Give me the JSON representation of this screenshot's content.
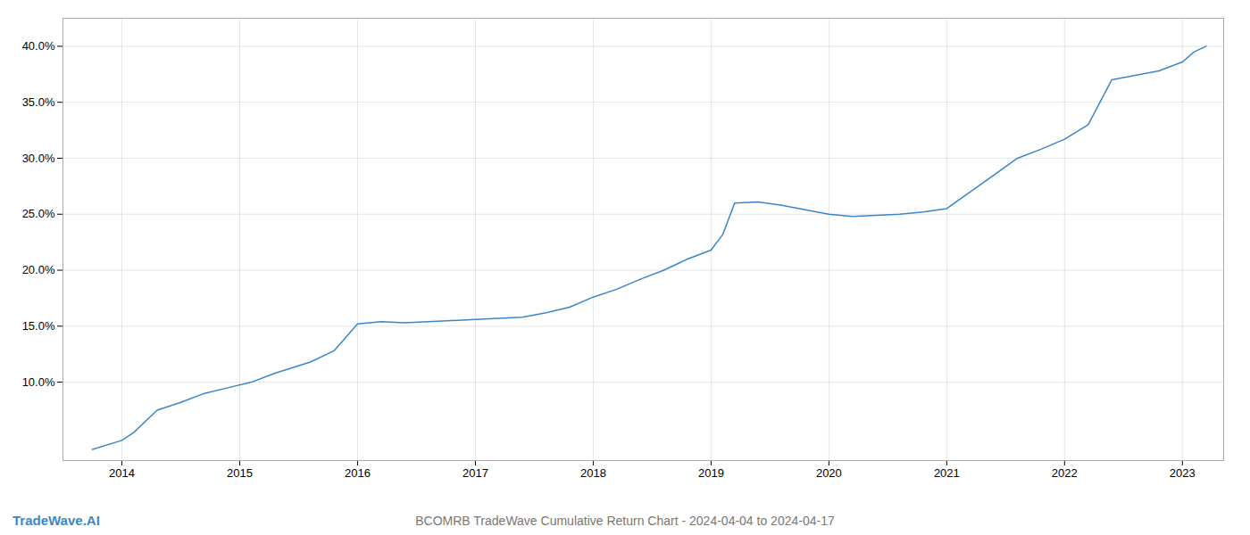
{
  "chart_data": {
    "type": "line",
    "title": "BCOMRB TradeWave Cumulative Return Chart - 2024-04-04 to 2024-04-17",
    "annotations": [
      "TradeWave.AI"
    ],
    "color": "#3a86c8",
    "grid": true,
    "x": [
      2013.75,
      2014.0,
      2014.1,
      2014.2,
      2014.3,
      2014.5,
      2014.7,
      2014.9,
      2015.1,
      2015.3,
      2015.6,
      2015.8,
      2016.0,
      2016.2,
      2016.4,
      2016.6,
      2016.8,
      2017.0,
      2017.2,
      2017.4,
      2017.6,
      2017.8,
      2018.0,
      2018.2,
      2018.4,
      2018.6,
      2018.8,
      2019.0,
      2019.1,
      2019.2,
      2019.4,
      2019.6,
      2019.8,
      2020.0,
      2020.2,
      2020.4,
      2020.6,
      2020.8,
      2021.0,
      2021.2,
      2021.4,
      2021.6,
      2021.8,
      2022.0,
      2022.2,
      2022.4,
      2022.6,
      2022.8,
      2023.0,
      2023.1,
      2023.2
    ],
    "values": [
      0.04,
      0.048,
      0.055,
      0.065,
      0.075,
      0.082,
      0.09,
      0.095,
      0.1,
      0.108,
      0.118,
      0.128,
      0.152,
      0.154,
      0.153,
      0.154,
      0.155,
      0.156,
      0.157,
      0.158,
      0.162,
      0.167,
      0.176,
      0.183,
      0.192,
      0.2,
      0.21,
      0.218,
      0.232,
      0.26,
      0.261,
      0.258,
      0.254,
      0.25,
      0.248,
      0.249,
      0.25,
      0.252,
      0.255,
      0.27,
      0.285,
      0.3,
      0.308,
      0.317,
      0.33,
      0.37,
      0.374,
      0.378,
      0.386,
      0.395,
      0.4
    ],
    "xlim": [
      2013.5,
      2023.35
    ],
    "ylim": [
      0.03,
      0.425
    ],
    "xticks": [
      2014,
      2015,
      2016,
      2017,
      2018,
      2019,
      2020,
      2021,
      2022,
      2023
    ],
    "yticks": [
      {
        "value": 0.1,
        "label": "10.0%"
      },
      {
        "value": 0.15,
        "label": "15.0%"
      },
      {
        "value": 0.2,
        "label": "20.0%"
      },
      {
        "value": 0.25,
        "label": "25.0%"
      },
      {
        "value": 0.3,
        "label": "30.0%"
      },
      {
        "value": 0.35,
        "label": "35.0%"
      },
      {
        "value": 0.4,
        "label": "40.0%"
      }
    ]
  }
}
